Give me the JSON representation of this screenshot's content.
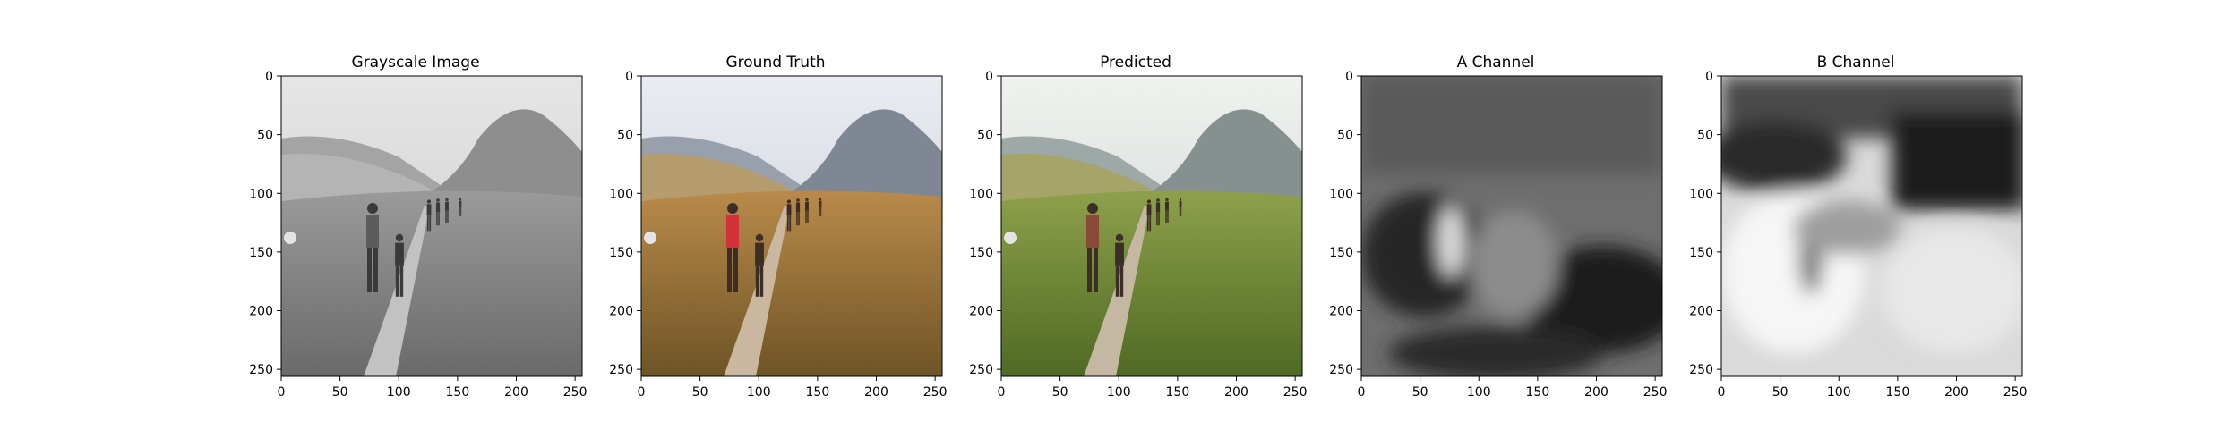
{
  "panels": [
    {
      "title": "Grayscale Image",
      "kind": "gray"
    },
    {
      "title": "Ground Truth",
      "kind": "truth"
    },
    {
      "title": "Predicted",
      "kind": "pred"
    },
    {
      "title": "A Channel",
      "kind": "achan"
    },
    {
      "title": "B Channel",
      "kind": "bchan"
    }
  ],
  "axes": {
    "xticks": [
      0,
      50,
      100,
      150,
      200,
      250
    ],
    "yticks": [
      0,
      50,
      100,
      150,
      200,
      250
    ],
    "xlim": [
      0,
      256
    ],
    "ylim": [
      256,
      0
    ]
  }
}
